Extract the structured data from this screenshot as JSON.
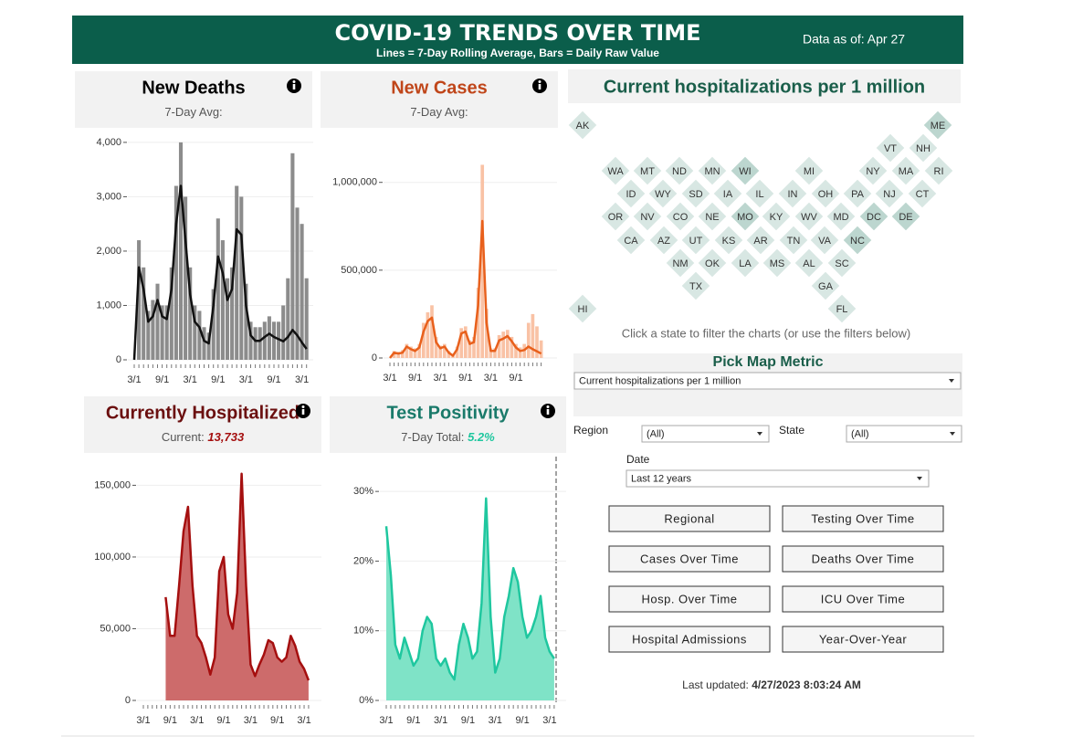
{
  "header": {
    "title": "COVID-19 TRENDS OVER TIME",
    "subtitle": "Lines = 7-Day Rolling Average, Bars = Daily Raw Value",
    "data_as_of": "Data as of: Apr 27"
  },
  "chart_data": [
    {
      "type": "bar-line",
      "title": "New Deaths",
      "title_color": "#000000",
      "subtitle": "7-Day Avg:",
      "categories": [
        "3/1",
        null,
        null,
        null,
        null,
        null,
        "9/1",
        null,
        null,
        null,
        null,
        null,
        "3/1",
        null,
        null,
        null,
        null,
        null,
        "9/1",
        null,
        null,
        null,
        null,
        null,
        "3/1",
        null,
        null,
        null,
        null,
        null,
        "9/1",
        null,
        null,
        null,
        null,
        null,
        "3/1",
        null
      ],
      "series": [
        {
          "color": "#8c8c8c",
          "values": [
            0,
            2200,
            1700,
            900,
            1100,
            1400,
            1000,
            1000,
            1700,
            3200,
            4000,
            3000,
            1700,
            1000,
            900,
            600,
            500,
            1300,
            2600,
            2200,
            1500,
            1700,
            3200,
            3000,
            1400,
            700,
            600,
            600,
            700,
            800,
            700,
            700,
            1000,
            1500,
            3800,
            2800,
            2500,
            1500
          ]
        },
        {
          "color": "#111111",
          "values": [
            0,
            1700,
            1300,
            700,
            800,
            1100,
            800,
            750,
            1300,
            2500,
            3200,
            2200,
            1200,
            700,
            600,
            350,
            300,
            1000,
            1900,
            1600,
            1100,
            1300,
            2400,
            2300,
            1000,
            450,
            350,
            350,
            420,
            480,
            420,
            380,
            340,
            420,
            550,
            450,
            320,
            200
          ]
        }
      ],
      "ylim": [
        0,
        4200
      ],
      "yticks": [
        0,
        {
          "value": 1000,
          "label": "1,000"
        },
        {
          "value": 2000,
          "label": "2,000"
        },
        {
          "value": 3000,
          "label": "3,000"
        },
        {
          "value": 4000,
          "label": "4,000"
        }
      ],
      "grid": true
    },
    {
      "type": "bar-line",
      "title": "New Cases",
      "title_color": "#c0461a",
      "subtitle": "7-Day Avg:",
      "categories": [
        "3/1",
        null,
        null,
        null,
        null,
        null,
        "9/1",
        null,
        null,
        null,
        null,
        null,
        "3/1",
        null,
        null,
        null,
        null,
        null,
        "9/1",
        null,
        null,
        null,
        null,
        null,
        "3/1",
        null,
        null,
        null,
        null,
        null,
        "9/1",
        null,
        null,
        null,
        null,
        null,
        null
      ],
      "series": [
        {
          "color": "#f9c2a5",
          "values": [
            0,
            40000,
            35000,
            45000,
            80000,
            65000,
            55000,
            80000,
            200000,
            260000,
            300000,
            120000,
            70000,
            80000,
            40000,
            20000,
            65000,
            170000,
            180000,
            100000,
            120000,
            400000,
            1100000,
            280000,
            55000,
            55000,
            130000,
            150000,
            160000,
            120000,
            80000,
            60000,
            80000,
            200000,
            250000,
            180000,
            100000
          ]
        },
        {
          "color": "#e8601c",
          "values": [
            0,
            30000,
            25000,
            30000,
            65000,
            50000,
            40000,
            60000,
            150000,
            210000,
            230000,
            90000,
            55000,
            65000,
            30000,
            13000,
            50000,
            140000,
            150000,
            80000,
            90000,
            300000,
            780000,
            200000,
            40000,
            40000,
            100000,
            110000,
            125000,
            95000,
            60000,
            40000,
            45000,
            65000,
            50000,
            38000,
            25000
          ]
        }
      ],
      "ylim": [
        0,
        1300000
      ],
      "yticks": [
        0,
        {
          "value": 500000,
          "label": "500,000"
        },
        {
          "value": 1000000,
          "label": "1,000,000"
        }
      ],
      "grid": true
    },
    {
      "type": "area",
      "title": "Currently Hospitalized",
      "title_color": "#6b0f0f",
      "subtitle": "Current:",
      "current": "13,733",
      "categories": [
        "3/1",
        null,
        null,
        null,
        null,
        null,
        "9/1",
        null,
        null,
        null,
        null,
        null,
        "3/1",
        null,
        null,
        null,
        null,
        null,
        "9/1",
        null,
        null,
        null,
        null,
        null,
        "3/1",
        null,
        null,
        null,
        null,
        null,
        "9/1",
        null,
        null,
        null,
        null,
        null,
        "3/1",
        null
      ],
      "series": [
        {
          "color": "#a50f0f",
          "fill": "#cd6b6b",
          "values": [
            null,
            null,
            null,
            null,
            null,
            72000,
            45000,
            45000,
            80000,
            118000,
            135000,
            80000,
            45000,
            40000,
            30000,
            18000,
            30000,
            90000,
            100000,
            60000,
            50000,
            75000,
            158000,
            80000,
            25000,
            17000,
            25000,
            32000,
            42000,
            40000,
            30000,
            27000,
            30000,
            45000,
            38000,
            27000,
            22000,
            14000
          ]
        }
      ],
      "ylim": [
        0,
        170000
      ],
      "yticks": [
        0,
        {
          "value": 50000,
          "label": "50,000"
        },
        {
          "value": 100000,
          "label": "100,000"
        },
        {
          "value": 150000,
          "label": "150,000"
        }
      ],
      "grid": true
    },
    {
      "type": "area",
      "title": "Test Positivity",
      "title_color": "#1a7a6a",
      "subtitle": "7-Day Total:",
      "current": "5.2%",
      "categories": [
        "3/1",
        null,
        null,
        null,
        null,
        null,
        "9/1",
        null,
        null,
        null,
        null,
        null,
        "3/1",
        null,
        null,
        null,
        null,
        null,
        "9/1",
        null,
        null,
        null,
        null,
        null,
        "3/1",
        null,
        null,
        null,
        null,
        null,
        "9/1",
        null,
        null,
        null,
        null,
        null,
        "3/1",
        null
      ],
      "series": [
        {
          "color": "#1fc79f",
          "fill": "#7fe3c7",
          "values": [
            25,
            18,
            8,
            6,
            9,
            7,
            5,
            6,
            10,
            12,
            11,
            6,
            5,
            6,
            4,
            3,
            8,
            11,
            9,
            6,
            7,
            14,
            29,
            12,
            4,
            6,
            12,
            15,
            19,
            17,
            12,
            9,
            10,
            12,
            15,
            9,
            7,
            6
          ]
        }
      ],
      "ylim": [
        0,
        35
      ],
      "yticks": [
        {
          "value": 0,
          "label": "0%"
        },
        {
          "value": 10,
          "label": "10%"
        },
        {
          "value": 20,
          "label": "20%"
        },
        {
          "value": 30,
          "label": "30%"
        }
      ],
      "grid": true
    }
  ],
  "map": {
    "title": "Current hospitalizations per 1 million",
    "states": [
      "AK",
      "ME",
      "VT",
      "NH",
      "WA",
      "MT",
      "ND",
      "MN",
      "WI",
      "MI",
      "NY",
      "MA",
      "RI",
      "ID",
      "WY",
      "SD",
      "IA",
      "IL",
      "IN",
      "OH",
      "PA",
      "NJ",
      "CT",
      "OR",
      "NV",
      "CO",
      "NE",
      "MO",
      "KY",
      "WV",
      "MD",
      "DC",
      "DE",
      "CA",
      "AZ",
      "UT",
      "KS",
      "AR",
      "TN",
      "VA",
      "NC",
      "NM",
      "OK",
      "LA",
      "MS",
      "AL",
      "SC",
      "TX",
      "GA",
      "HI",
      "FL"
    ],
    "hint": "Click a state to filter the charts (or use the filters below)"
  },
  "controls": {
    "metric_title": "Pick Map Metric",
    "metric_value": "Current hospitalizations per 1 million",
    "region_label": "Region",
    "region_value": "(All)",
    "state_label": "State",
    "state_value": "(All)",
    "date_label": "Date",
    "date_value": "Last 12 years",
    "buttons": [
      "Regional",
      "Testing Over Time",
      "Cases Over Time",
      "Deaths Over Time",
      "Hosp. Over Time",
      "ICU Over Time",
      "Hospital Admissions",
      "Year-Over-Year"
    ],
    "last_updated_label": "Last updated:",
    "last_updated_value": "4/27/2023 8:03:24 AM"
  }
}
